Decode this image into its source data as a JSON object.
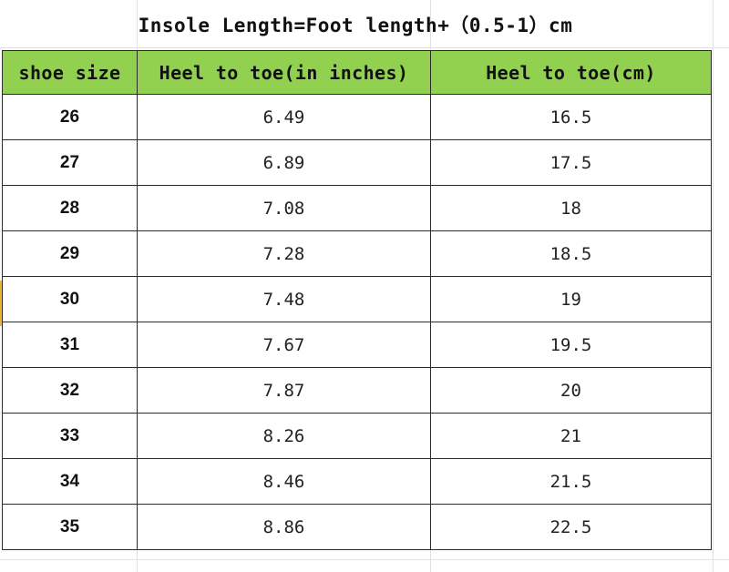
{
  "title": "Insole Length=Foot length+（0.5-1）cm",
  "table": {
    "headers": [
      "shoe size",
      "Heel to toe(in inches)",
      "Heel to toe(cm)"
    ],
    "rows": [
      {
        "size": "26",
        "inches": "6.49",
        "cm": "16.5"
      },
      {
        "size": "27",
        "inches": "6.89",
        "cm": "17.5"
      },
      {
        "size": "28",
        "inches": "7.08",
        "cm": "18"
      },
      {
        "size": "29",
        "inches": "7.28",
        "cm": "18.5"
      },
      {
        "size": "30",
        "inches": "7.48",
        "cm": "19"
      },
      {
        "size": "31",
        "inches": "7.67",
        "cm": "19.5"
      },
      {
        "size": "32",
        "inches": "7.87",
        "cm": "20"
      },
      {
        "size": "33",
        "inches": "8.26",
        "cm": "21"
      },
      {
        "size": "34",
        "inches": "8.46",
        "cm": "21.5"
      },
      {
        "size": "35",
        "inches": "8.86",
        "cm": "22.5"
      }
    ]
  },
  "colors": {
    "header_fill": "#92d050",
    "border": "#2b2b2b",
    "selection_marker": "#f2b233"
  }
}
